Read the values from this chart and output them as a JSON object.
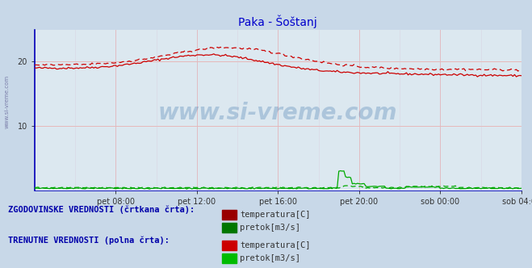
{
  "title": "Paka - Šoštanj",
  "title_color": "#0000cc",
  "bg_color": "#c8d8e8",
  "plot_bg_color": "#dce8f0",
  "xlim": [
    0,
    288
  ],
  "ylim": [
    0,
    25
  ],
  "ytick_positions": [
    10,
    20
  ],
  "ytick_labels": [
    "10",
    "20"
  ],
  "xtick_positions": [
    48,
    96,
    144,
    192,
    240
  ],
  "xtick_labels": [
    "pet 08:00",
    "pet 12:00",
    "pet 16:00",
    "pet 20:00",
    "sob 00:00",
    "sob 04:00"
  ],
  "xtick_positions_all": [
    48,
    96,
    144,
    192,
    240,
    288
  ],
  "temp_color": "#cc0000",
  "pretok_color": "#00aa00",
  "blue_color": "#0000bb",
  "watermark_text": "www.si-vreme.com",
  "watermark_color": "#2060a0",
  "watermark_alpha": 0.25,
  "left_label": "www.si-vreme.com",
  "legend_text1": "ZGODOVINSKE VREDNOSTI (črtkana črta):",
  "legend_text2": "TRENUTNE VREDNOSTI (polna črta):",
  "legend_temp": "temperatura[C]",
  "legend_pretok": "pretok[m3/s]",
  "legend_color": "#0000aa"
}
